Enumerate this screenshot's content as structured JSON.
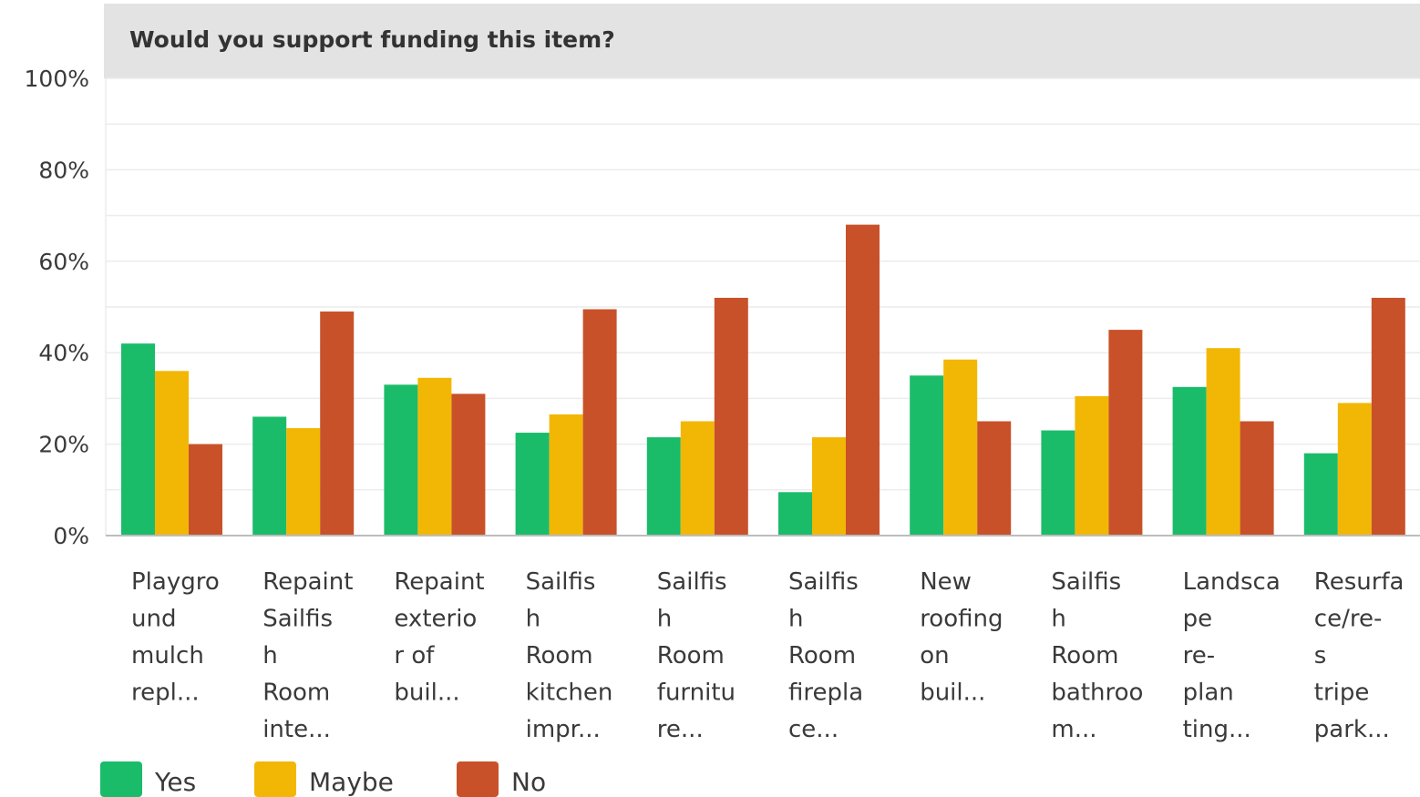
{
  "chart_data": {
    "type": "bar",
    "title": "Would you support funding this item?",
    "xlabel": "",
    "ylabel": "",
    "ylim": [
      0,
      100
    ],
    "yticks": [
      "0%",
      "20%",
      "40%",
      "60%",
      "80%",
      "100%"
    ],
    "grid": true,
    "legend_position": "bottom-left",
    "categories": [
      [
        "Playgro",
        "und",
        "mulch",
        "repl..."
      ],
      [
        "Repaint",
        "Sailfis",
        "h",
        "Room",
        "inte..."
      ],
      [
        "Repaint",
        "exterio",
        "r of",
        "buil..."
      ],
      [
        "Sailfis",
        "h",
        "Room",
        "kitchen",
        "impr..."
      ],
      [
        "Sailfis",
        "h",
        "Room",
        "furnitu",
        "re..."
      ],
      [
        "Sailfis",
        "h",
        "Room",
        "firepla",
        "ce..."
      ],
      [
        "New",
        "roofing",
        "on",
        "buil..."
      ],
      [
        "Sailfis",
        "h",
        "Room",
        "bathroo",
        "m..."
      ],
      [
        "Landsca",
        "pe",
        "re-",
        "plan",
        "ting..."
      ],
      [
        "Resurfa",
        "ce/re-",
        "s",
        "tripe",
        "park..."
      ]
    ],
    "series": [
      {
        "name": "Yes",
        "color": "#1abc6a",
        "values": [
          42,
          26,
          33,
          22.5,
          21.5,
          9.5,
          35,
          23,
          32.5,
          18
        ]
      },
      {
        "name": "Maybe",
        "color": "#f2b705",
        "values": [
          36,
          23.5,
          34.5,
          26.5,
          25,
          21.5,
          38.5,
          30.5,
          41,
          29
        ]
      },
      {
        "name": "No",
        "color": "#c8512a",
        "values": [
          20,
          49,
          31,
          49.5,
          52,
          68,
          25,
          45,
          25,
          52
        ]
      }
    ]
  }
}
